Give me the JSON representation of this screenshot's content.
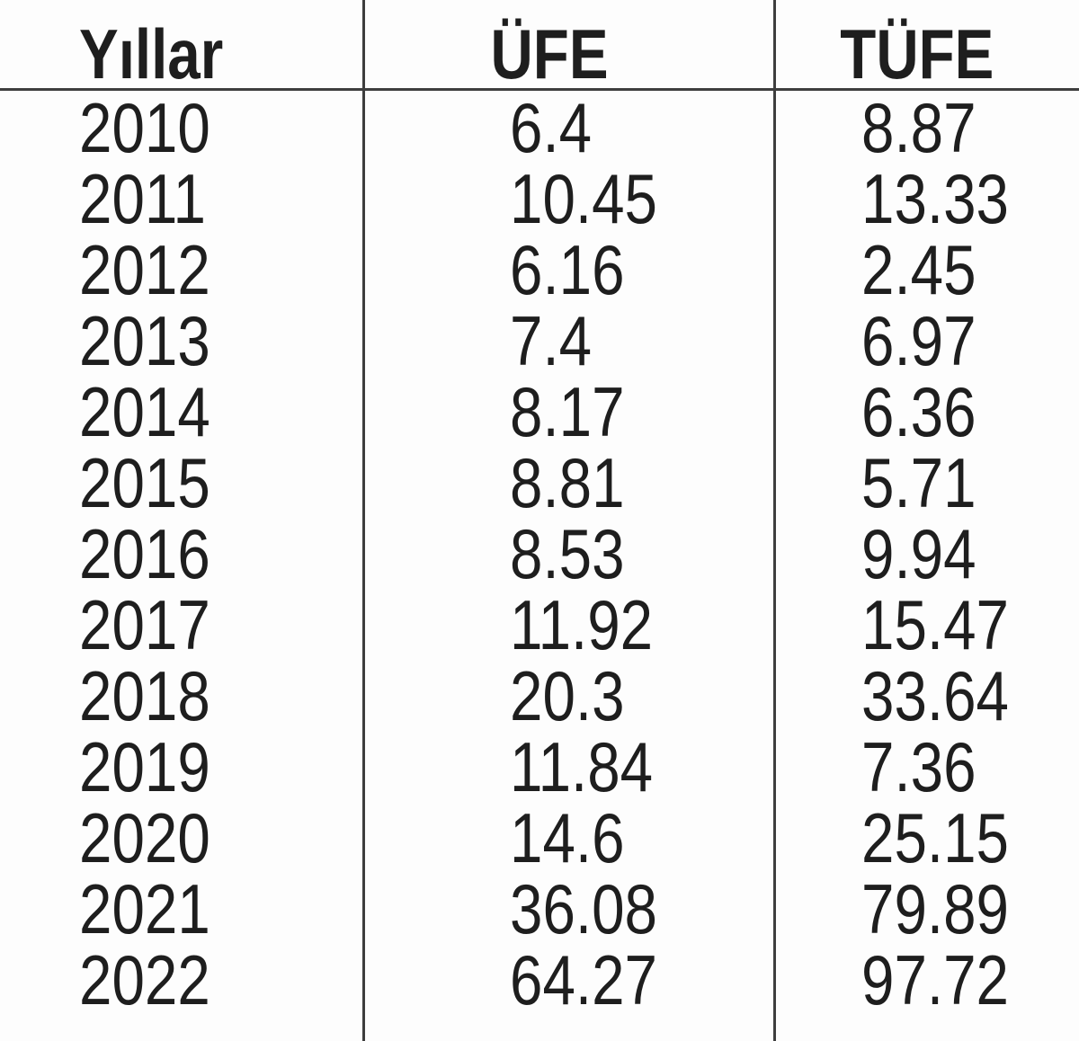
{
  "table": {
    "columns": [
      {
        "label": "Yıllar"
      },
      {
        "label": "ÜFE"
      },
      {
        "label": "TÜFE"
      }
    ],
    "rows": [
      {
        "yillar": "2010",
        "ufe": "6.4",
        "tufe": "8.87"
      },
      {
        "yillar": "2011",
        "ufe": "10.45",
        "tufe": "13.33"
      },
      {
        "yillar": "2012",
        "ufe": "6.16",
        "tufe": "2.45"
      },
      {
        "yillar": "2013",
        "ufe": "7.4",
        "tufe": "6.97"
      },
      {
        "yillar": "2014",
        "ufe": "8.17",
        "tufe": "6.36"
      },
      {
        "yillar": "2015",
        "ufe": "8.81",
        "tufe": "5.71"
      },
      {
        "yillar": "2016",
        "ufe": "8.53",
        "tufe": "9.94"
      },
      {
        "yillar": "2017",
        "ufe": "11.92",
        "tufe": "15.47"
      },
      {
        "yillar": "2018",
        "ufe": "20.3",
        "tufe": "33.64"
      },
      {
        "yillar": "2019",
        "ufe": "11.84",
        "tufe": "7.36"
      },
      {
        "yillar": "2020",
        "ufe": "14.6",
        "tufe": "25.15"
      },
      {
        "yillar": "2021",
        "ufe": "36.08",
        "tufe": "79.89"
      },
      {
        "yillar": "2022",
        "ufe": "64.27",
        "tufe": "97.72"
      }
    ]
  },
  "colors": {
    "text": "#1e1e1e",
    "rule": "#3e3e3e",
    "background": "#fdfdfd"
  },
  "chart_data": {
    "type": "table",
    "title": "",
    "categories": [
      "2010",
      "2011",
      "2012",
      "2013",
      "2014",
      "2015",
      "2016",
      "2017",
      "2018",
      "2019",
      "2020",
      "2021",
      "2022"
    ],
    "series": [
      {
        "name": "ÜFE",
        "values": [
          6.4,
          10.45,
          6.16,
          7.4,
          8.17,
          8.81,
          8.53,
          11.92,
          20.3,
          11.84,
          14.6,
          36.08,
          64.27
        ]
      },
      {
        "name": "TÜFE",
        "values": [
          8.87,
          13.33,
          2.45,
          6.97,
          6.36,
          5.71,
          9.94,
          15.47,
          33.64,
          7.36,
          25.15,
          79.89,
          97.72
        ]
      }
    ]
  }
}
